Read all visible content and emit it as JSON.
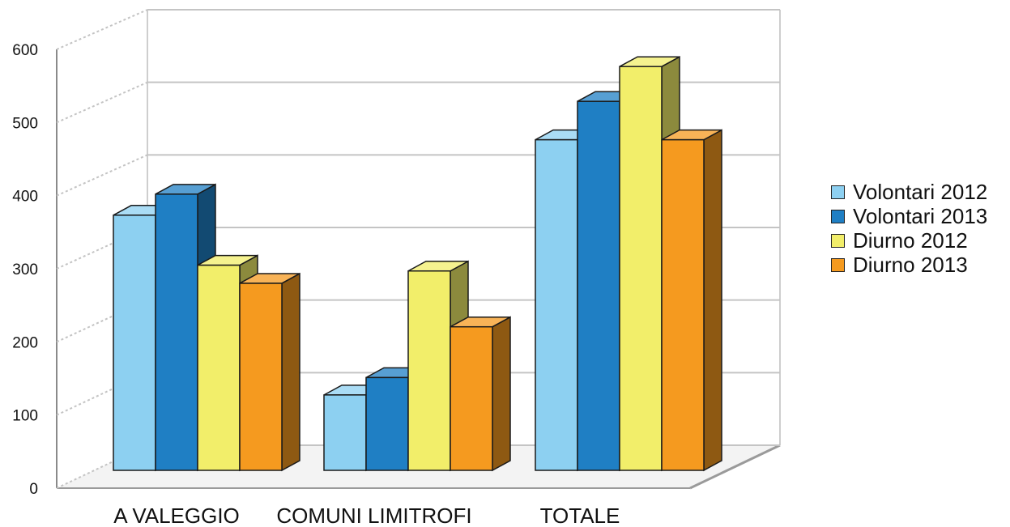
{
  "chart_data": {
    "type": "bar",
    "categories": [
      "A VALEGGIO",
      "COMUNI LIMITROFI",
      "TOTALE"
    ],
    "series": [
      {
        "name": "Volontari 2012",
        "values": [
          352,
          104,
          456
        ],
        "color": "#8dd0f1"
      },
      {
        "name": "Volontari 2013",
        "values": [
          381,
          128,
          509
        ],
        "color": "#1f7fc4"
      },
      {
        "name": "Diurno 2012",
        "values": [
          283,
          275,
          557
        ],
        "color": "#f2ee6a"
      },
      {
        "name": "Diurno 2013",
        "values": [
          258,
          198,
          456
        ],
        "color": "#f59a1f"
      }
    ],
    "yticks": [
      0,
      100,
      200,
      300,
      400,
      500,
      600
    ],
    "ylim": [
      0,
      600
    ],
    "grid": true,
    "legend": "right",
    "title": "",
    "xlabel": "",
    "ylabel": ""
  }
}
